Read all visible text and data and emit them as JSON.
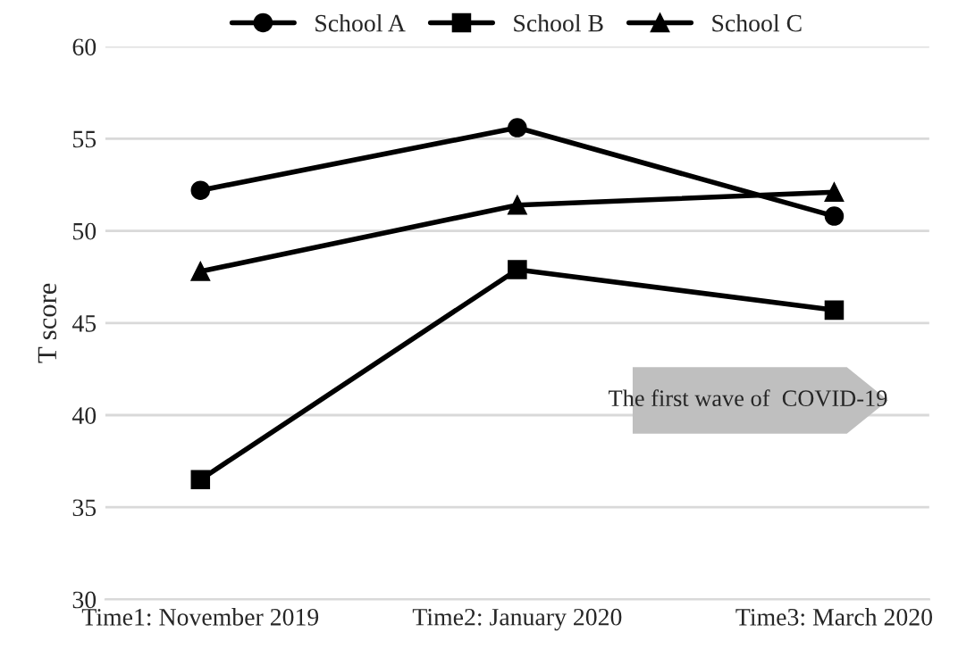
{
  "chart_data": {
    "type": "line",
    "ylabel": "T score",
    "categories": [
      "Time1: November 2019",
      "Time2: January 2020",
      "Time3: March 2020"
    ],
    "series": [
      {
        "name": "School A",
        "color": "#000000",
        "marker": "circle",
        "values": [
          52.2,
          55.6,
          50.8
        ]
      },
      {
        "name": "School B",
        "color": "#000000",
        "marker": "square",
        "values": [
          36.5,
          47.9,
          45.7
        ]
      },
      {
        "name": "School C",
        "color": "#000000",
        "marker": "triangle",
        "values": [
          47.8,
          51.4,
          52.1
        ]
      }
    ],
    "ylim": [
      30,
      60
    ],
    "yticks": [
      30,
      35,
      40,
      45,
      50,
      55,
      60
    ],
    "grid": "y",
    "legend": "top",
    "line_style": "solid",
    "annotations": [
      "The first wave of  COVID-19"
    ]
  }
}
